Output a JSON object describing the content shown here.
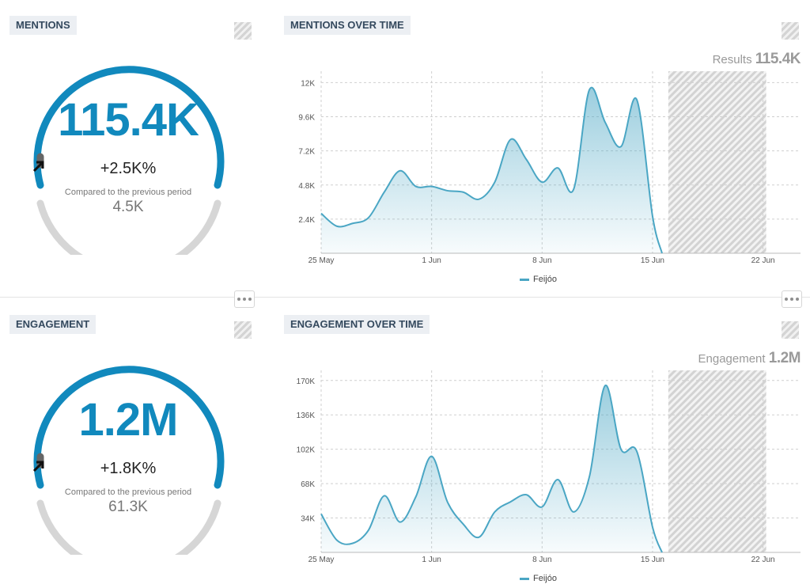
{
  "colors": {
    "accent": "#1189bd",
    "series": "#4aa6c4",
    "arc_grey": "#d6d6d6",
    "arc_dark": "#666666"
  },
  "mentions": {
    "label": "MENTIONS",
    "value": "115.4K",
    "change": "+2.5K%",
    "compare_text": "Compared to the previous period",
    "previous": "4.5K",
    "gauge_fraction": 1.0,
    "more_icon": "ellipsis-icon"
  },
  "mentions_over_time": {
    "label": "MENTIONS OVER TIME",
    "result_label": "Results",
    "result_value": "115.4K"
  },
  "engagement": {
    "label": "ENGAGEMENT",
    "value": "1.2M",
    "change": "+1.8K%",
    "compare_text": "Compared to the previous period",
    "previous": "61.3K",
    "gauge_fraction": 1.0,
    "more_icon": "ellipsis-icon"
  },
  "engagement_over_time": {
    "label": "ENGAGEMENT OVER TIME",
    "result_label": "Engagement",
    "result_value": "1.2M"
  },
  "chart_data": [
    {
      "type": "area",
      "title": "MENTIONS OVER TIME",
      "x_ticks": [
        "25 May",
        "1 Jun",
        "8 Jun",
        "15 Jun",
        "22 Jun"
      ],
      "y_ticks": [
        "2.4K",
        "4.8K",
        "7.2K",
        "9.6K",
        "12K"
      ],
      "ylim": [
        0,
        12800
      ],
      "x_start": "25 May",
      "x": [
        "25 May",
        "26 May",
        "27 May",
        "28 May",
        "29 May",
        "30 May",
        "31 May",
        "1 Jun",
        "2 Jun",
        "3 Jun",
        "4 Jun",
        "5 Jun",
        "6 Jun",
        "7 Jun",
        "8 Jun",
        "9 Jun",
        "10 Jun",
        "11 Jun",
        "12 Jun",
        "13 Jun",
        "14 Jun",
        "15 Jun"
      ],
      "hatched_from": "16 Jun",
      "hatched_to": "22 Jun",
      "grid": true,
      "series": [
        {
          "name": "Feijóo",
          "values": [
            2800,
            1900,
            2100,
            2500,
            4300,
            5800,
            4700,
            4700,
            4400,
            4300,
            3800,
            5000,
            8000,
            6600,
            5000,
            6000,
            4500,
            11500,
            9200,
            7500,
            10800,
            2600
          ]
        }
      ],
      "hatched_region": [
        "16 Jun",
        "22 Jun"
      ],
      "legend": [
        "Feijóo"
      ],
      "legend_position": "bottom"
    },
    {
      "type": "area",
      "title": "ENGAGEMENT OVER TIME",
      "x_ticks": [
        "25 May",
        "1 Jun",
        "8 Jun",
        "15 Jun",
        "22 Jun"
      ],
      "y_ticks": [
        "34K",
        "68K",
        "102K",
        "136K",
        "170K"
      ],
      "ylim": [
        0,
        180000
      ],
      "x_start": "25 May",
      "x": [
        "25 May",
        "26 May",
        "27 May",
        "28 May",
        "29 May",
        "30 May",
        "31 May",
        "1 Jun",
        "2 Jun",
        "3 Jun",
        "4 Jun",
        "5 Jun",
        "6 Jun",
        "7 Jun",
        "8 Jun",
        "9 Jun",
        "10 Jun",
        "11 Jun",
        "12 Jun",
        "13 Jun",
        "14 Jun",
        "15 Jun"
      ],
      "grid": true,
      "series": [
        {
          "name": "Feijóo",
          "values": [
            38000,
            12000,
            9000,
            22000,
            56000,
            30000,
            55000,
            95000,
            50000,
            28000,
            15000,
            40000,
            50000,
            57000,
            45000,
            72000,
            40000,
            75000,
            165000,
            102000,
            100000,
            25000
          ]
        }
      ],
      "hatched_region": [
        "16 Jun",
        "22 Jun"
      ],
      "legend": [
        "Feijóo"
      ],
      "legend_position": "bottom"
    }
  ]
}
